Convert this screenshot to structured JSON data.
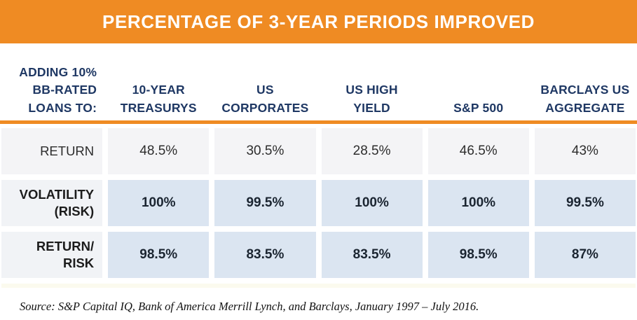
{
  "banner": {
    "title": "PERCENTAGE OF 3-YEAR PERIODS IMPROVED"
  },
  "table": {
    "corner_header": "ADDING 10%\nBB-RATED\nLOANS TO:",
    "columns": [
      "10-YEAR\nTREASURYS",
      "US\nCORPORATES",
      "US HIGH\nYIELD",
      "S&P 500",
      "BARCLAYS US\nAGGREGATE"
    ],
    "rows": [
      {
        "label": "RETURN",
        "values": [
          "48.5%",
          "30.5%",
          "28.5%",
          "46.5%",
          "43%"
        ]
      },
      {
        "label": "VOLATILITY\n(RISK)",
        "values": [
          "100%",
          "99.5%",
          "100%",
          "100%",
          "99.5%"
        ]
      },
      {
        "label": "RETURN/\nRISK",
        "values": [
          "98.5%",
          "83.5%",
          "83.5%",
          "98.5%",
          "87%"
        ]
      }
    ]
  },
  "source": "Source: S&P Capital IQ, Bank of America Merrill Lynch, and Barclays, January 1997 – July 2016.",
  "colors": {
    "banner_orange": "#EF8B23",
    "header_navy": "#1F3864",
    "plain_row_bg": "#F4F4F6",
    "highlight_cell_bg": "#DBE5F1",
    "highlight_label_bg": "#F1F3F6"
  },
  "chart_data": {
    "type": "table",
    "title": "PERCENTAGE OF 3-YEAR PERIODS IMPROVED",
    "row_header": "ADDING 10% BB-RATED LOANS TO:",
    "columns": [
      "10-YEAR TREASURYS",
      "US CORPORATES",
      "US HIGH YIELD",
      "S&P 500",
      "BARCLAYS US AGGREGATE"
    ],
    "rows": [
      {
        "label": "RETURN",
        "values_pct": [
          48.5,
          30.5,
          28.5,
          46.5,
          43
        ]
      },
      {
        "label": "VOLATILITY (RISK)",
        "values_pct": [
          100,
          99.5,
          100,
          100,
          99.5
        ]
      },
      {
        "label": "RETURN/RISK",
        "values_pct": [
          98.5,
          83.5,
          83.5,
          98.5,
          87
        ]
      }
    ],
    "source": "Source: S&P Capital IQ, Bank of America Merrill Lynch, and Barclays, January 1997 – July 2016."
  }
}
